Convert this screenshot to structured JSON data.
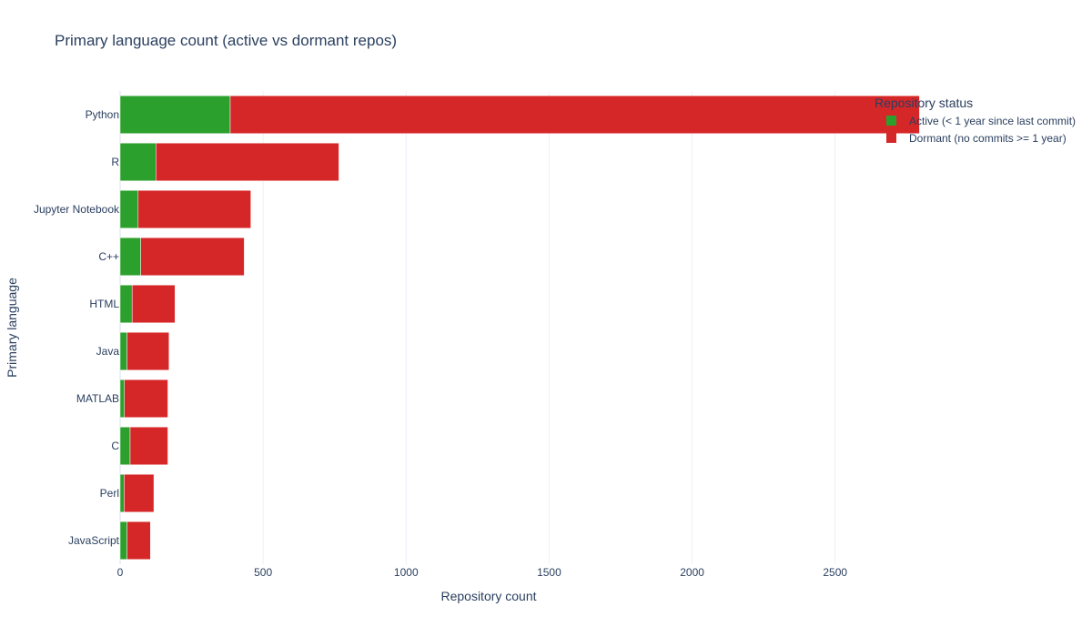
{
  "chart_data": {
    "type": "bar",
    "orientation": "horizontal",
    "barmode": "stack",
    "title": "Primary language count (active vs dormant repos)",
    "xlabel": "Repository count",
    "ylabel": "Primary language",
    "xlim": [
      0,
      2800
    ],
    "xticks": [
      0,
      500,
      1000,
      1500,
      2000,
      2500
    ],
    "grid": true,
    "categories": [
      "Python",
      "R",
      "Jupyter Notebook",
      "C++",
      "HTML",
      "Java",
      "MATLAB",
      "C",
      "Perl",
      "JavaScript"
    ],
    "series": [
      {
        "name": "Active (< 1 year since last commit)",
        "color": "#2ca02c",
        "values": [
          385,
          125,
          63,
          72,
          42,
          24,
          15,
          35,
          14,
          24
        ]
      },
      {
        "name": "Dormant (no commits >= 1 year)",
        "color": "#d62728",
        "values": [
          2410,
          640,
          394,
          362,
          150,
          147,
          152,
          132,
          104,
          82
        ]
      }
    ],
    "legend": {
      "title": "Repository status",
      "placement": "top-right"
    }
  }
}
